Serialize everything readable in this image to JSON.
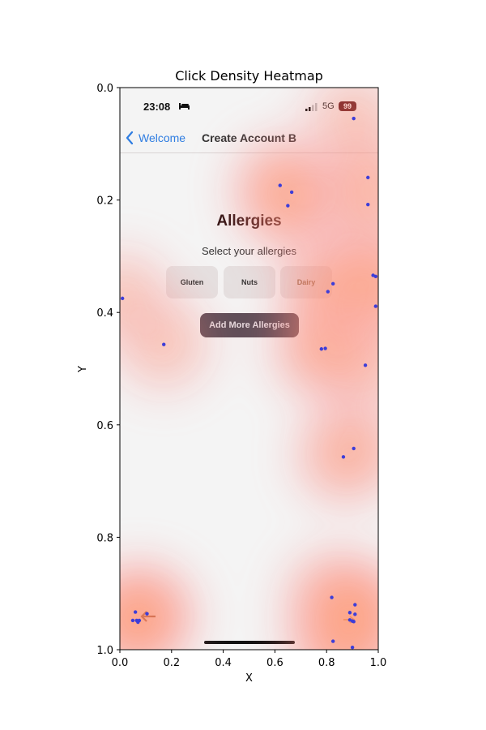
{
  "chart_data": {
    "type": "heatmap",
    "title": "Click Density Heatmap",
    "xlabel": "X",
    "ylabel": "Y",
    "xlim": [
      0.0,
      1.0
    ],
    "ylim": [
      1.0,
      0.0
    ],
    "y_inverted": true,
    "x_ticks": [
      "0.0",
      "0.2",
      "0.4",
      "0.6",
      "0.8",
      "1.0"
    ],
    "y_ticks": [
      "0.0",
      "0.2",
      "0.4",
      "0.6",
      "0.8",
      "1.0"
    ],
    "grid": false,
    "colormap": [
      "#ffffff",
      "#ff8080",
      "#ffa060",
      "#ffff20"
    ],
    "point_color": "#3d3dd8",
    "click_points": [
      {
        "x": 0.905,
        "y": 0.055
      },
      {
        "x": 0.96,
        "y": 0.16
      },
      {
        "x": 0.62,
        "y": 0.174
      },
      {
        "x": 0.665,
        "y": 0.186
      },
      {
        "x": 0.65,
        "y": 0.21
      },
      {
        "x": 0.96,
        "y": 0.208
      },
      {
        "x": 0.98,
        "y": 0.334
      },
      {
        "x": 0.99,
        "y": 0.336
      },
      {
        "x": 0.825,
        "y": 0.349
      },
      {
        "x": 0.805,
        "y": 0.363
      },
      {
        "x": 0.99,
        "y": 0.389
      },
      {
        "x": 0.01,
        "y": 0.375
      },
      {
        "x": 0.17,
        "y": 0.457
      },
      {
        "x": 0.78,
        "y": 0.465
      },
      {
        "x": 0.795,
        "y": 0.464
      },
      {
        "x": 0.95,
        "y": 0.494
      },
      {
        "x": 0.905,
        "y": 0.642
      },
      {
        "x": 0.865,
        "y": 0.657
      },
      {
        "x": 0.82,
        "y": 0.907
      },
      {
        "x": 0.91,
        "y": 0.92
      },
      {
        "x": 0.89,
        "y": 0.934
      },
      {
        "x": 0.91,
        "y": 0.937
      },
      {
        "x": 0.89,
        "y": 0.947
      },
      {
        "x": 0.9,
        "y": 0.949
      },
      {
        "x": 0.905,
        "y": 0.95
      },
      {
        "x": 0.06,
        "y": 0.933
      },
      {
        "x": 0.105,
        "y": 0.936
      },
      {
        "x": 0.05,
        "y": 0.948
      },
      {
        "x": 0.065,
        "y": 0.948
      },
      {
        "x": 0.075,
        "y": 0.948
      },
      {
        "x": 0.07,
        "y": 0.951
      },
      {
        "x": 0.825,
        "y": 0.985
      },
      {
        "x": 0.9,
        "y": 0.996
      }
    ]
  },
  "screenshot": {
    "status_bar": {
      "time": "23:08",
      "network": "5G",
      "battery": "99",
      "icons": [
        "bed-icon",
        "signal-icon"
      ]
    },
    "nav": {
      "back_label": "Welcome",
      "back_icon": "chevron-left-icon",
      "title": "Create Account B"
    },
    "heading": "Allergies",
    "subheading": "Select your allergies",
    "chips": [
      "Gluten",
      "Nuts",
      "Dairy"
    ],
    "add_button": "Add More Allergies",
    "bottom_icons": [
      "arrow-left-icon",
      "arrow-right-icon"
    ],
    "colors": {
      "accent": "#2f7de1",
      "button": "#5c4e58",
      "battery": "#5a0e14"
    }
  }
}
